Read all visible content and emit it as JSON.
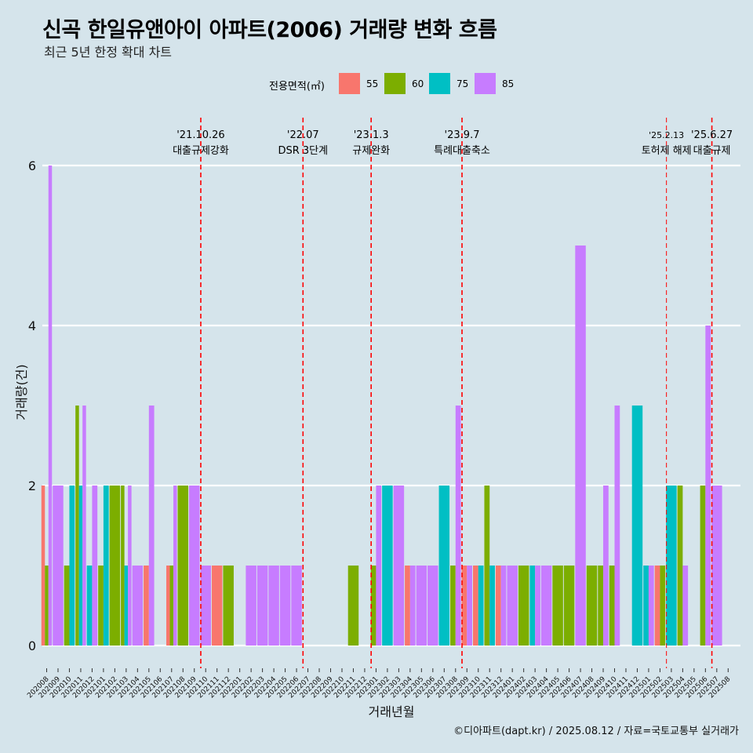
{
  "title": "신곡 한일유앤아이 아파트(2006) 거래량 변화 흐름",
  "subtitle": "최근 5년 한정 확대 차트",
  "legend": {
    "title": "전용면적(㎡)",
    "items": [
      {
        "label": "55",
        "color": "#f8766d"
      },
      {
        "label": "60",
        "color": "#7cae00"
      },
      {
        "label": "75",
        "color": "#00bfc4"
      },
      {
        "label": "85",
        "color": "#c77cff"
      }
    ]
  },
  "caption": "©디아파트(dapt.kr) / 2025.08.12 / 자료=국토교통부 실거래가",
  "chart_data": {
    "type": "bar",
    "xlabel": "거래년월",
    "ylabel": "거래량(건)",
    "ylim": [
      0,
      6
    ],
    "yticks": [
      0,
      2,
      4,
      6
    ],
    "grid": true,
    "categories": [
      "202008",
      "202009",
      "202010",
      "202011",
      "202012",
      "202101",
      "202102",
      "202103",
      "202104",
      "202105",
      "202106",
      "202107",
      "202108",
      "202109",
      "202110",
      "202111",
      "202112",
      "202201",
      "202202",
      "202203",
      "202204",
      "202205",
      "202206",
      "202207",
      "202208",
      "202209",
      "202210",
      "202211",
      "202212",
      "202301",
      "202302",
      "202303",
      "202304",
      "202305",
      "202306",
      "202307",
      "202308",
      "202309",
      "202310",
      "202311",
      "202312",
      "202401",
      "202402",
      "202403",
      "202404",
      "202405",
      "202406",
      "202407",
      "202408",
      "202409",
      "202410",
      "202411",
      "202412",
      "202501",
      "202502",
      "202503",
      "202504",
      "202505",
      "202506",
      "202507",
      "202508"
    ],
    "series": [
      {
        "name": "55",
        "color": "#f8766d",
        "values": [
          2,
          0,
          0,
          0,
          0,
          0,
          0,
          0,
          0,
          1,
          0,
          1,
          0,
          0,
          0,
          1,
          0,
          0,
          0,
          0,
          0,
          0,
          0,
          0,
          0,
          0,
          0,
          0,
          0,
          0,
          0,
          0,
          1,
          0,
          0,
          0,
          0,
          1,
          1,
          0,
          1,
          0,
          0,
          0,
          0,
          0,
          0,
          0,
          0,
          0,
          0,
          0,
          0,
          0,
          1,
          0,
          0,
          0,
          0,
          0,
          0
        ]
      },
      {
        "name": "60",
        "color": "#7cae00",
        "values": [
          1,
          0,
          1,
          3,
          0,
          1,
          2,
          2,
          0,
          0,
          0,
          1,
          2,
          0,
          0,
          0,
          1,
          0,
          0,
          0,
          0,
          0,
          0,
          0,
          0,
          0,
          0,
          1,
          0,
          1,
          0,
          0,
          0,
          0,
          0,
          0,
          1,
          0,
          0,
          2,
          0,
          0,
          1,
          0,
          0,
          1,
          1,
          0,
          1,
          1,
          1,
          0,
          0,
          0,
          1,
          0,
          2,
          0,
          2,
          0,
          0
        ]
      },
      {
        "name": "75",
        "color": "#00bfc4",
        "values": [
          0,
          0,
          2,
          2,
          1,
          2,
          0,
          1,
          0,
          0,
          0,
          0,
          0,
          0,
          0,
          0,
          0,
          0,
          0,
          0,
          0,
          0,
          0,
          0,
          0,
          0,
          0,
          0,
          0,
          0,
          2,
          0,
          0,
          0,
          0,
          2,
          0,
          0,
          1,
          1,
          0,
          0,
          0,
          1,
          0,
          0,
          0,
          0,
          0,
          0,
          0,
          0,
          3,
          1,
          0,
          2,
          0,
          0,
          0,
          0,
          0
        ]
      },
      {
        "name": "85",
        "color": "#c77cff",
        "values": [
          6,
          2,
          0,
          3,
          2,
          0,
          0,
          2,
          1,
          3,
          0,
          2,
          0,
          2,
          1,
          0,
          0,
          0,
          1,
          1,
          1,
          1,
          1,
          0,
          0,
          0,
          0,
          0,
          0,
          2,
          0,
          2,
          1,
          1,
          1,
          0,
          3,
          1,
          0,
          0,
          1,
          1,
          0,
          1,
          1,
          0,
          0,
          5,
          0,
          2,
          3,
          0,
          0,
          1,
          0,
          0,
          1,
          0,
          4,
          2,
          0
        ]
      }
    ],
    "annotations": [
      {
        "x": "202110",
        "date": "'21.10.26",
        "text": "대출규제강화"
      },
      {
        "x": "202207",
        "date": "'22.07",
        "text": "DSR 3단계"
      },
      {
        "x": "202301",
        "date": "'23.1.3",
        "text": "규제완화"
      },
      {
        "x": "202309",
        "date": "'23.9.7",
        "text": "특례대출축소"
      },
      {
        "x": "202503",
        "date": "'25.2.13",
        "text": "토허제 해제"
      },
      {
        "x": "202507",
        "date": "'25.6.27",
        "text": "대출규제"
      }
    ]
  }
}
